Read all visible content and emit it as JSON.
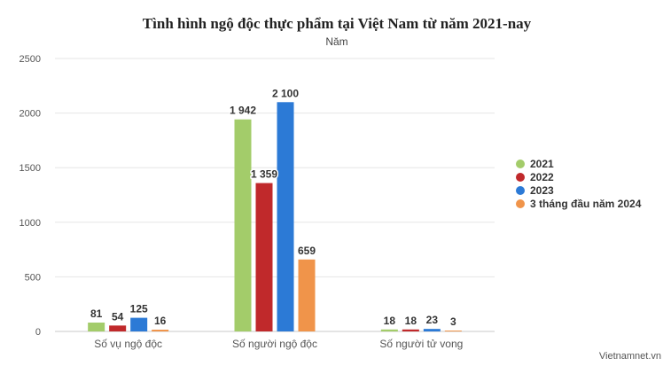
{
  "chart_data": {
    "type": "bar",
    "title": "Tình hình ngộ độc thực phẩm tại Việt Nam từ năm 2021-nay",
    "subtitle": "Năm",
    "categories": [
      "Số vụ ngộ độc",
      "Số người ngộ độc",
      "Số người tử vong"
    ],
    "series": [
      {
        "name": "2021",
        "color": "#a3cc6a",
        "values": [
          81,
          1942,
          18
        ],
        "labels": [
          "81",
          "1 942",
          "18"
        ]
      },
      {
        "name": "2022",
        "color": "#c0292b",
        "values": [
          54,
          1359,
          18
        ],
        "labels": [
          "54",
          "1 359",
          "18"
        ]
      },
      {
        "name": "2023",
        "color": "#2c7ad6",
        "values": [
          125,
          2100,
          23
        ],
        "labels": [
          "125",
          "2 100",
          "23"
        ]
      },
      {
        "name": "3 tháng đầu năm 2024",
        "color": "#f0944a",
        "values": [
          16,
          659,
          3
        ],
        "labels": [
          "16",
          "659",
          "3"
        ]
      }
    ],
    "yticks": [
      "0",
      "500",
      "1000",
      "1500",
      "2000",
      "2500"
    ],
    "ylim": [
      0,
      2500
    ],
    "grid": true,
    "legend_position": "right"
  },
  "source": "Vietnamnet.vn"
}
